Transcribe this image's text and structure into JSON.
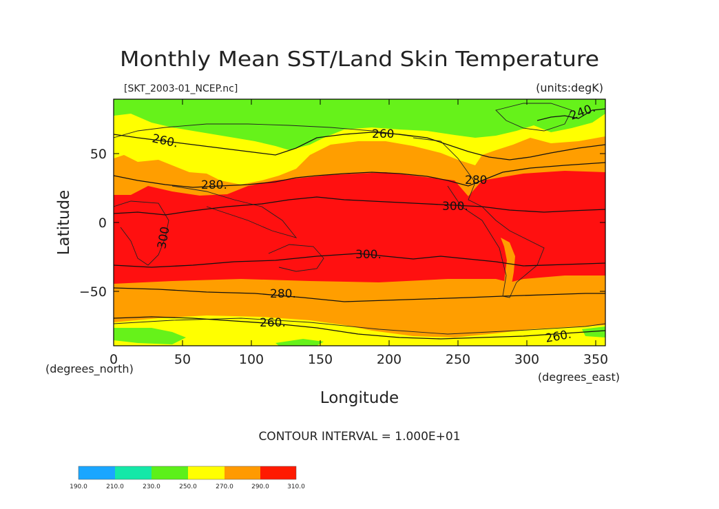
{
  "header": {
    "title": "Monthly Mean SST/Land Skin Temperature",
    "file": "[SKT_2003-01_NCEP.nc]",
    "units": "(units:degK)"
  },
  "axes": {
    "ylabel": "Latitude",
    "xlabel": "Longitude",
    "y_unit": "(degrees_north)",
    "x_unit": "(degrees_east)",
    "xticks": [
      "0",
      "50",
      "100",
      "150",
      "200",
      "250",
      "300",
      "350"
    ],
    "yticks": [
      "50",
      "0",
      "−50"
    ],
    "xlim": [
      0,
      357.5
    ],
    "ylim": [
      -90,
      90
    ]
  },
  "contour": {
    "interval_text": "CONTOUR INTERVAL = 1.000E+01",
    "labels": [
      "240.",
      "260.",
      "260",
      "260.",
      "260.",
      "280.",
      "280",
      "280.",
      "300.",
      "300.",
      "300"
    ]
  },
  "colorbar": {
    "ticks": [
      "190.0",
      "210.0",
      "230.0",
      "250.0",
      "270.0",
      "290.0",
      "310.0"
    ],
    "colors": [
      "#1aa6ff",
      "#14e8a8",
      "#5cf01a",
      "#ffff00",
      "#ff9a00",
      "#ff1a00"
    ]
  },
  "palette": {
    "green": "#66f21a",
    "yellow": "#ffff00",
    "orange": "#ff9e00",
    "red": "#ff1010"
  }
}
